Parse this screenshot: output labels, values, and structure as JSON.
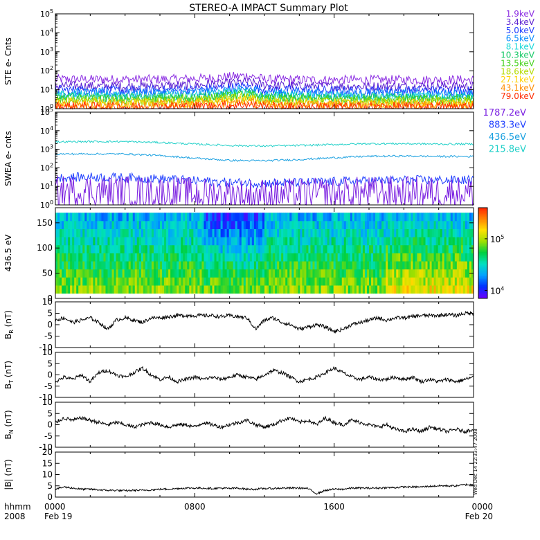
{
  "title": "STEREO-A IMPACT Summary Plot",
  "timestamp": "Wed Dec 14 22:33:47 2008",
  "time_axis": {
    "corner_labels": [
      "hhmm",
      "2008"
    ],
    "ticks": [
      {
        "hhmm": "0000",
        "date": "Feb 19"
      },
      {
        "hhmm": "0800",
        "date": ""
      },
      {
        "hhmm": "1600",
        "date": ""
      },
      {
        "hhmm": "0000",
        "date": "Feb 20"
      }
    ]
  },
  "chart_data": [
    {
      "type": "line",
      "panel": "ste",
      "ylabel": "STE e- Cnts",
      "yscale": "log",
      "ylim": [
        1,
        100000
      ],
      "ytick_exponents": [
        0,
        1,
        2,
        3,
        4,
        5
      ],
      "xlim_hours": [
        0,
        24
      ],
      "series": [
        {
          "name": "1.9keV",
          "color": "#8a2be2",
          "x": [
            0,
            3,
            6,
            8,
            9,
            10,
            11,
            12,
            14,
            18,
            22,
            24
          ],
          "values": [
            35,
            35,
            35,
            38,
            42,
            48,
            55,
            35,
            33,
            33,
            33,
            33
          ]
        },
        {
          "name": "3.4keV",
          "color": "#5a1fd0",
          "x": [
            0,
            4,
            8,
            10,
            11,
            12,
            16,
            20,
            24
          ],
          "values": [
            16,
            15,
            17,
            22,
            26,
            17,
            15,
            15,
            15
          ]
        },
        {
          "name": "5.0keV",
          "color": "#1e3cff",
          "x": [
            0,
            4,
            8,
            10,
            11,
            12,
            16,
            20,
            24
          ],
          "values": [
            10,
            9,
            10,
            13,
            15,
            10,
            9,
            9,
            9
          ]
        },
        {
          "name": "6.5keV",
          "color": "#0a8cff",
          "x": [
            0,
            4,
            8,
            10,
            11,
            12,
            16,
            20,
            24
          ],
          "values": [
            7,
            6.5,
            7,
            9,
            11,
            7,
            6,
            6,
            6
          ]
        },
        {
          "name": "8.1keV",
          "color": "#18d8d8",
          "x": [
            0,
            4,
            8,
            10,
            11,
            12,
            16,
            20,
            24
          ],
          "values": [
            5,
            4.5,
            5,
            7,
            8,
            5,
            4.5,
            4.5,
            4.5
          ]
        },
        {
          "name": "10.3keV",
          "color": "#14c864",
          "x": [
            0,
            4,
            8,
            10,
            11,
            12,
            16,
            20,
            24
          ],
          "values": [
            4,
            3.6,
            4,
            5.5,
            6.5,
            4,
            3.6,
            3.6,
            3.6
          ]
        },
        {
          "name": "13.5keV",
          "color": "#46d21e",
          "x": [
            0,
            4,
            8,
            10,
            11,
            12,
            16,
            20,
            24
          ],
          "values": [
            3.2,
            3,
            3.3,
            4.5,
            5,
            3.2,
            3,
            3,
            3
          ]
        },
        {
          "name": "18.6keV",
          "color": "#b4dc00",
          "x": [
            0,
            4,
            8,
            10,
            11,
            12,
            16,
            20,
            24
          ],
          "values": [
            2.6,
            2.4,
            2.6,
            3.5,
            4,
            2.6,
            2.4,
            2.4,
            2.4
          ]
        },
        {
          "name": "27.1keV",
          "color": "#ffd200",
          "x": [
            0,
            4,
            8,
            10,
            11,
            12,
            16,
            20,
            24
          ],
          "values": [
            2,
            1.9,
            2,
            2.6,
            3,
            2,
            1.9,
            1.9,
            1.9
          ]
        },
        {
          "name": "43.1keV",
          "color": "#ff8c00",
          "x": [
            0,
            4,
            8,
            10,
            11,
            12,
            16,
            20,
            24
          ],
          "values": [
            1.6,
            1.5,
            1.6,
            2,
            2.3,
            1.6,
            1.5,
            1.5,
            1.5
          ]
        },
        {
          "name": "79.0keV",
          "color": "#ff2a00",
          "x": [
            0,
            4,
            8,
            10,
            11,
            12,
            16,
            20,
            24
          ],
          "values": [
            1.3,
            1.25,
            1.3,
            1.5,
            1.7,
            1.3,
            1.25,
            1.25,
            1.25
          ]
        }
      ]
    },
    {
      "type": "line",
      "panel": "swea",
      "ylabel": "SWEA e- cnts",
      "yscale": "log",
      "ylim": [
        1,
        100000
      ],
      "ytick_exponents": [
        0,
        1,
        2,
        3,
        4,
        5
      ],
      "xlim_hours": [
        0,
        24
      ],
      "series": [
        {
          "name": "215.8eV",
          "color": "#20d0c8",
          "x": [
            0,
            2,
            4,
            6,
            8,
            10,
            12,
            14,
            16,
            18,
            20,
            22,
            24
          ],
          "values": [
            2500,
            2600,
            2600,
            2300,
            1900,
            1600,
            1500,
            1600,
            1800,
            2000,
            2000,
            1900,
            1900
          ]
        },
        {
          "name": "436.5eV",
          "color": "#1aa0e0",
          "x": [
            0,
            2,
            4,
            6,
            8,
            10,
            12,
            14,
            16,
            18,
            20,
            22,
            24
          ],
          "values": [
            550,
            560,
            560,
            450,
            330,
            250,
            240,
            280,
            350,
            420,
            430,
            410,
            410
          ]
        },
        {
          "name": "883.3eV",
          "color": "#2040ff",
          "x": [
            0,
            2,
            4,
            6,
            8,
            10,
            12,
            14,
            16,
            18,
            20,
            22,
            24
          ],
          "values": [
            28,
            32,
            30,
            26,
            20,
            16,
            15,
            16,
            18,
            20,
            22,
            22,
            22
          ]
        },
        {
          "name": "1787.2eV",
          "color": "#7a1fe0",
          "x": [
            0,
            2,
            4,
            6,
            8,
            10,
            12,
            14,
            16,
            18,
            20,
            22,
            24
          ],
          "values": [
            5,
            5.5,
            5,
            4.5,
            4,
            3.5,
            3.5,
            3.5,
            4,
            4.5,
            4.5,
            4.5,
            4.5
          ]
        }
      ]
    },
    {
      "type": "heatmap",
      "panel": "pad",
      "ylabel": "436.5 eV",
      "ylim": [
        0,
        180
      ],
      "yticks": [
        0,
        50,
        100,
        150
      ],
      "xlim_hours": [
        0,
        24
      ],
      "colorbar": {
        "scale": "log",
        "range": [
          7000,
          400000
        ],
        "tick_exponents": [
          4,
          5
        ],
        "colors": [
          "#6a00ff",
          "#0030ff",
          "#00a0ff",
          "#00e0c0",
          "#00d040",
          "#a0e000",
          "#ffe000",
          "#ff8000",
          "#ff2000"
        ]
      },
      "description_values": {
        "pitch_angle_coverage": [
          10,
          170
        ]
      }
    },
    {
      "type": "line",
      "panel": "br",
      "ylabel": "B_R (nT)",
      "ylim": [
        -10,
        10
      ],
      "yticks": [
        -10,
        -5,
        0,
        5,
        10
      ],
      "xlim_hours": [
        0,
        24
      ],
      "x": [
        0,
        0.5,
        1,
        1.5,
        2,
        2.5,
        3,
        3.5,
        4,
        4.5,
        5,
        5.5,
        6,
        6.5,
        7,
        7.5,
        8,
        8.5,
        9,
        9.5,
        10,
        10.5,
        11,
        11.5,
        12,
        12.5,
        13,
        13.5,
        14,
        14.5,
        15,
        15.5,
        16,
        16.5,
        17,
        17.5,
        18,
        18.5,
        19,
        19.5,
        20,
        20.5,
        21,
        21.5,
        22,
        22.5,
        23,
        23.5,
        24
      ],
      "values": [
        2,
        3,
        1,
        2,
        3,
        1,
        -2,
        2,
        3,
        2,
        1,
        3,
        3,
        3.5,
        4,
        4,
        4,
        4,
        4,
        3.5,
        4,
        3.5,
        3,
        -2,
        2,
        3,
        1,
        0,
        -2,
        -1,
        0,
        -1,
        -3,
        -2,
        0,
        1,
        2,
        3,
        2,
        3,
        3,
        3.5,
        4,
        4,
        4,
        4.5,
        4,
        5,
        5
      ]
    },
    {
      "type": "line",
      "panel": "bt",
      "ylabel": "B_T (nT)",
      "ylim": [
        -10,
        10
      ],
      "yticks": [
        -10,
        -5,
        0,
        5,
        10
      ],
      "xlim_hours": [
        0,
        24
      ],
      "x": [
        0,
        0.5,
        1,
        1.5,
        2,
        2.5,
        3,
        3.5,
        4,
        4.5,
        5,
        5.5,
        6,
        6.5,
        7,
        7.5,
        8,
        8.5,
        9,
        9.5,
        10,
        10.5,
        11,
        11.5,
        12,
        12.5,
        13,
        13.5,
        14,
        14.5,
        15,
        15.5,
        16,
        16.5,
        17,
        17.5,
        18,
        18.5,
        19,
        19.5,
        20,
        20.5,
        21,
        21.5,
        22,
        22.5,
        23,
        23.5,
        24
      ],
      "values": [
        -3,
        -1,
        -2,
        0,
        -3,
        1,
        2,
        0,
        -1,
        1,
        3,
        0,
        -2,
        -1,
        -3,
        -2,
        -1,
        -2,
        -1,
        -2,
        -1,
        0,
        -1,
        -2,
        0,
        2,
        1,
        -1,
        -3,
        -2,
        -1,
        1,
        3,
        1,
        -1,
        -2,
        -1,
        -2,
        -2,
        -1,
        -2,
        -1,
        -3,
        -2,
        -3,
        -2,
        -3,
        -2,
        -1
      ]
    },
    {
      "type": "line",
      "panel": "bn",
      "ylabel": "B_N (nT)",
      "ylim": [
        -10,
        10
      ],
      "yticks": [
        -10,
        -5,
        0,
        5,
        10
      ],
      "xlim_hours": [
        0,
        24
      ],
      "x": [
        0,
        0.5,
        1,
        1.5,
        2,
        2.5,
        3,
        3.5,
        4,
        4.5,
        5,
        5.5,
        6,
        6.5,
        7,
        7.5,
        8,
        8.5,
        9,
        9.5,
        10,
        10.5,
        11,
        11.5,
        12,
        12.5,
        13,
        13.5,
        14,
        14.5,
        15,
        15.5,
        16,
        16.5,
        17,
        17.5,
        18,
        18.5,
        19,
        19.5,
        20,
        20.5,
        21,
        21.5,
        22,
        22.5,
        23,
        23.5,
        24
      ],
      "values": [
        1,
        3,
        2,
        3,
        2,
        1,
        0,
        1,
        0,
        -1,
        0,
        1,
        0,
        -1,
        0,
        0,
        -1,
        1,
        0,
        -1,
        0,
        1,
        2,
        0,
        -1,
        0,
        2,
        3,
        1,
        2,
        0,
        3,
        1,
        0,
        2,
        1,
        0,
        -1,
        0,
        -2,
        -3,
        -2,
        -3,
        -1,
        -2,
        -3,
        -2,
        -3,
        -2
      ]
    },
    {
      "type": "line",
      "panel": "bmag",
      "ylabel": "|B| (nT)",
      "ylim": [
        0,
        20
      ],
      "yticks": [
        0,
        5,
        10,
        15,
        20
      ],
      "xlim_hours": [
        0,
        24
      ],
      "x": [
        0,
        0.5,
        1,
        1.5,
        2,
        2.5,
        3,
        3.5,
        4,
        4.5,
        5,
        5.5,
        6,
        6.5,
        7,
        7.5,
        8,
        8.5,
        9,
        9.5,
        10,
        10.5,
        11,
        11.5,
        12,
        12.5,
        13,
        13.5,
        14,
        14.5,
        15,
        15.5,
        16,
        16.5,
        17,
        17.5,
        18,
        18.5,
        19,
        19.5,
        20,
        20.5,
        21,
        21.5,
        22,
        22.5,
        23,
        23.5,
        24
      ],
      "values": [
        3.5,
        4.5,
        4,
        3.5,
        3.5,
        3.2,
        3,
        3,
        2.8,
        3,
        3,
        3.2,
        3.5,
        3.5,
        3.8,
        4,
        4,
        4,
        3.8,
        4,
        3.8,
        4,
        3.5,
        3.5,
        3.8,
        3.8,
        4,
        4,
        4,
        3.8,
        1.5,
        3,
        3.5,
        3.5,
        4,
        4,
        4,
        4,
        4.2,
        4.2,
        4.5,
        4.5,
        4.5,
        4.8,
        5,
        5,
        5,
        5.5,
        5.5
      ]
    }
  ]
}
